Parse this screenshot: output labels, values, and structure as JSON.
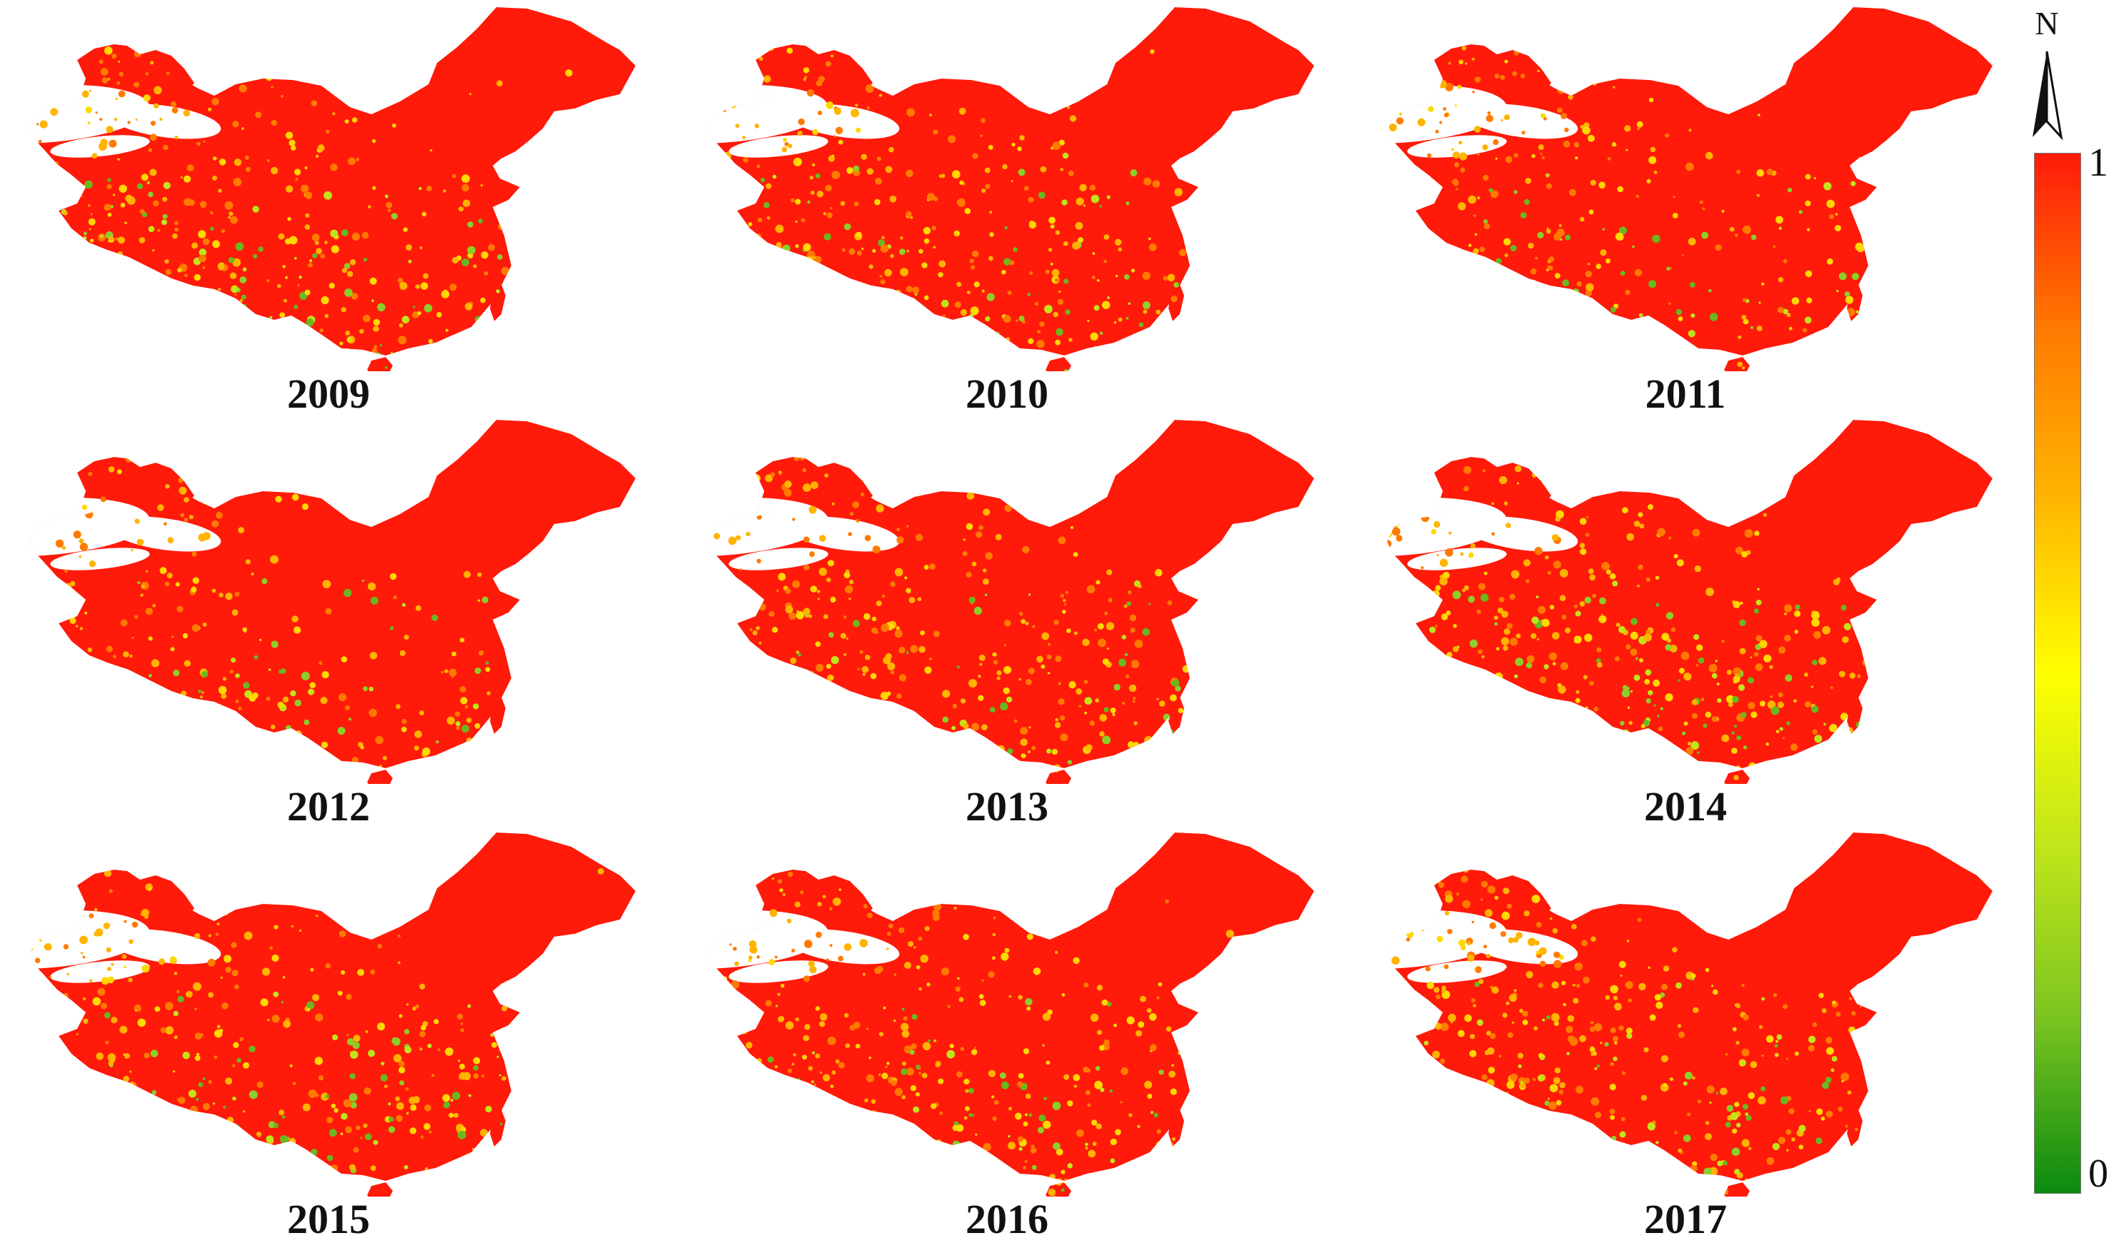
{
  "figure": {
    "north_label": "N",
    "legend": {
      "max_label": "1",
      "min_label": "0",
      "colors": [
        "#ff1a0a",
        "#ff7a00",
        "#ffb400",
        "#ffff00",
        "#bfe51a",
        "#7cc520",
        "#0b8a10"
      ]
    },
    "panels": [
      {
        "year": "2009",
        "green_south": 0.55,
        "orange_south": 0.75
      },
      {
        "year": "2010",
        "green_south": 0.45,
        "orange_south": 0.7
      },
      {
        "year": "2011",
        "green_south": 0.5,
        "orange_south": 0.55
      },
      {
        "year": "2012",
        "green_south": 0.4,
        "orange_south": 0.45
      },
      {
        "year": "2013",
        "green_south": 0.45,
        "orange_south": 0.65
      },
      {
        "year": "2014",
        "green_south": 0.65,
        "orange_south": 0.8
      },
      {
        "year": "2015",
        "green_south": 0.55,
        "orange_south": 0.65
      },
      {
        "year": "2016",
        "green_south": 0.45,
        "orange_south": 0.75
      },
      {
        "year": "2017",
        "green_south": 0.55,
        "orange_south": 0.8
      }
    ]
  }
}
